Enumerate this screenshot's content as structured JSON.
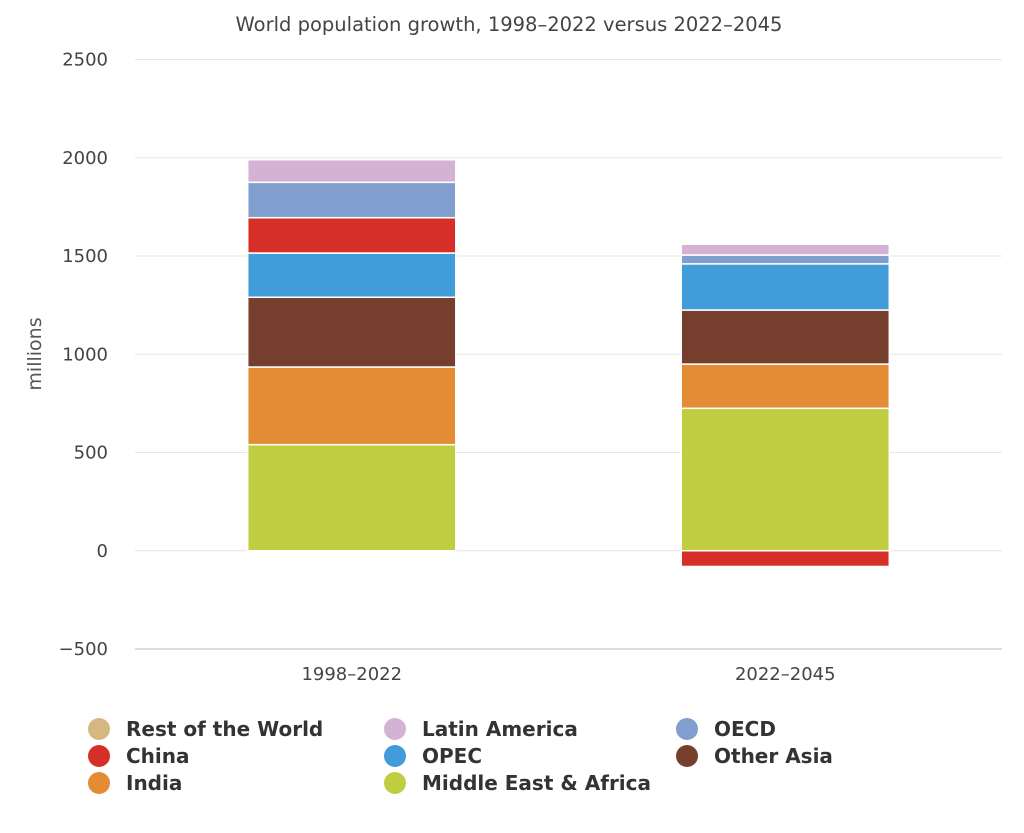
{
  "chart_data": {
    "type": "bar",
    "stacked": true,
    "title": "World population growth, 1998–2022 versus 2022–2045",
    "ylabel": "millions",
    "xlabel": "",
    "ylim": [
      -500,
      2500
    ],
    "yticks": [
      2500,
      2000,
      1500,
      1000,
      500,
      0,
      -500
    ],
    "ytick_labels": [
      "2500",
      "2000",
      "1500",
      "1000",
      "500",
      "0",
      "−500"
    ],
    "categories": [
      "1998–2022",
      "2022–2045"
    ],
    "grid": true,
    "legend_position": "bottom",
    "series": [
      {
        "name": "Middle East & Africa",
        "color": "#c1cd41",
        "values": [
          540,
          725
        ]
      },
      {
        "name": "India",
        "color": "#e38b35",
        "values": [
          395,
          225
        ]
      },
      {
        "name": "Other Asia",
        "color": "#763e2d",
        "values": [
          355,
          275
        ]
      },
      {
        "name": "OPEC",
        "color": "#419cd9",
        "values": [
          225,
          235
        ]
      },
      {
        "name": "China",
        "color": "#d52f27",
        "values": [
          180,
          -80
        ]
      },
      {
        "name": "OECD",
        "color": "#809fcf",
        "values": [
          180,
          45
        ]
      },
      {
        "name": "Latin America",
        "color": "#d4b2d4",
        "values": [
          115,
          55
        ]
      },
      {
        "name": "Rest of the World",
        "color": "#d4b880",
        "values": [
          0,
          0
        ]
      }
    ]
  },
  "legend": [
    {
      "label": "Rest of the World",
      "color": "#d4b880"
    },
    {
      "label": "Latin America",
      "color": "#d4b2d4"
    },
    {
      "label": "OECD",
      "color": "#809fcf"
    },
    {
      "label": "China",
      "color": "#d52f27"
    },
    {
      "label": "OPEC",
      "color": "#419cd9"
    },
    {
      "label": "Other Asia",
      "color": "#763e2d"
    },
    {
      "label": "India",
      "color": "#e38b35"
    },
    {
      "label": "Middle East & Africa",
      "color": "#c1cd41"
    }
  ]
}
